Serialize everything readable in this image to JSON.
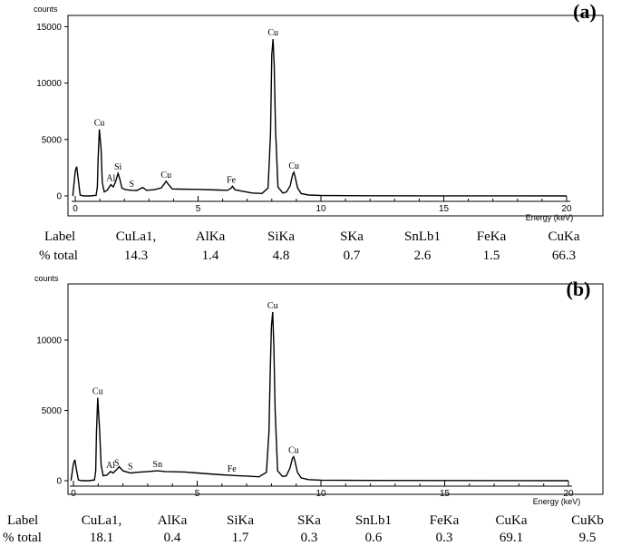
{
  "chart_data": [
    {
      "type": "line",
      "panel_label": "(a)",
      "ylabel": "counts",
      "xlabel": "Energy (keV)",
      "xlim": [
        0,
        20
      ],
      "ylim": [
        0,
        16000
      ],
      "xticks": [
        0,
        5,
        10,
        15,
        20
      ],
      "yticks": [
        0,
        5000,
        10000,
        15000
      ],
      "series": [
        {
          "x": [
            -0.1,
            0.0,
            0.06,
            0.12,
            0.2,
            0.35,
            0.6,
            0.85,
            0.9,
            0.93,
            0.98,
            1.05,
            1.1,
            1.18,
            1.3,
            1.45,
            1.55,
            1.65,
            1.74,
            1.8,
            1.9,
            2.05,
            2.3,
            2.5,
            2.75,
            2.9,
            3.2,
            3.5,
            3.6,
            3.7,
            3.8,
            3.95,
            4.2,
            5.0,
            5.8,
            6.2,
            6.35,
            6.4,
            6.5,
            6.8,
            7.2,
            7.6,
            7.85,
            7.95,
            8.0,
            8.05,
            8.1,
            8.15,
            8.25,
            8.45,
            8.6,
            8.75,
            8.85,
            8.9,
            8.95,
            9.05,
            9.2,
            9.5,
            10.0,
            12.0,
            15.0,
            18.0,
            20.0
          ],
          "y": [
            0,
            2200,
            2600,
            1500,
            80,
            0,
            0,
            60,
            800,
            3200,
            5900,
            4200,
            1200,
            350,
            500,
            1000,
            800,
            1300,
            2000,
            1600,
            700,
            550,
            500,
            480,
            750,
            500,
            550,
            700,
            1000,
            1300,
            1000,
            620,
            600,
            580,
            520,
            500,
            700,
            850,
            550,
            420,
            260,
            220,
            700,
            5500,
            12500,
            13900,
            11500,
            6000,
            800,
            250,
            350,
            900,
            1900,
            2100,
            1700,
            700,
            200,
            80,
            40,
            20,
            10,
            5,
            0
          ]
        }
      ],
      "peak_labels": [
        {
          "text": "Cu",
          "x": 0.98,
          "y": 5900
        },
        {
          "text": "Al",
          "x": 1.45,
          "y": 1000
        },
        {
          "text": "Si",
          "x": 1.74,
          "y": 2000
        },
        {
          "text": "S",
          "x": 2.3,
          "y": 500
        },
        {
          "text": "Cu",
          "x": 3.7,
          "y": 1300
        },
        {
          "text": "Fe",
          "x": 6.35,
          "y": 850
        },
        {
          "text": "Cu",
          "x": 8.05,
          "y": 13900
        },
        {
          "text": "Cu",
          "x": 8.9,
          "y": 2100
        }
      ]
    },
    {
      "type": "line",
      "panel_label": "(b)",
      "ylabel": "counts",
      "xlabel": "Energy (keV)",
      "xlim": [
        0,
        20
      ],
      "ylim": [
        0,
        14000
      ],
      "xticks": [
        0,
        5,
        10,
        15,
        20
      ],
      "yticks": [
        0,
        5000,
        10000
      ],
      "series": [
        {
          "x": [
            -0.1,
            0.0,
            0.06,
            0.12,
            0.2,
            0.35,
            0.6,
            0.85,
            0.9,
            0.93,
            0.98,
            1.05,
            1.12,
            1.2,
            1.35,
            1.5,
            1.6,
            1.75,
            1.85,
            2.0,
            2.3,
            2.6,
            3.0,
            3.4,
            3.7,
            4.0,
            4.5,
            5.0,
            6.0,
            6.4,
            6.5,
            7.0,
            7.5,
            7.8,
            7.9,
            7.95,
            8.0,
            8.05,
            8.1,
            8.15,
            8.25,
            8.45,
            8.6,
            8.75,
            8.85,
            8.9,
            8.95,
            9.05,
            9.2,
            9.5,
            10.0,
            12.0,
            15.0,
            18.0,
            20.0
          ],
          "y": [
            0,
            1200,
            1500,
            800,
            50,
            0,
            0,
            50,
            700,
            3400,
            5900,
            3800,
            1100,
            350,
            400,
            650,
            550,
            800,
            1000,
            700,
            550,
            600,
            650,
            700,
            650,
            640,
            620,
            550,
            420,
            380,
            370,
            330,
            280,
            600,
            3500,
            7500,
            11000,
            12000,
            9500,
            5000,
            700,
            300,
            350,
            900,
            1600,
            1700,
            1400,
            600,
            200,
            80,
            40,
            20,
            10,
            5,
            0
          ]
        }
      ],
      "peak_labels": [
        {
          "text": "Cu",
          "x": 0.98,
          "y": 5900
        },
        {
          "text": "Al",
          "x": 1.5,
          "y": 650
        },
        {
          "text": "S",
          "x": 1.75,
          "y": 800
        },
        {
          "text": "S",
          "x": 2.3,
          "y": 550
        },
        {
          "text": "Sn",
          "x": 3.4,
          "y": 700
        },
        {
          "text": "Fe",
          "x": 6.4,
          "y": 380
        },
        {
          "text": "Cu",
          "x": 8.05,
          "y": 12000
        },
        {
          "text": "Cu",
          "x": 8.9,
          "y": 1700
        }
      ]
    }
  ],
  "tables": [
    {
      "header": "Label",
      "row_label": "% total",
      "columns": [
        {
          "label": "CuLa1,",
          "value": "14.3"
        },
        {
          "label": "AlKa",
          "value": "1.4"
        },
        {
          "label": "SiKa",
          "value": "4.8"
        },
        {
          "label": "SKa",
          "value": "0.7"
        },
        {
          "label": "SnLb1",
          "value": "2.6"
        },
        {
          "label": "FeKa",
          "value": "1.5"
        },
        {
          "label": "CuKa",
          "value": "66.3"
        }
      ]
    },
    {
      "header": "Label",
      "row_label": "% total",
      "columns": [
        {
          "label": "CuLa1,",
          "value": "18.1"
        },
        {
          "label": "AlKa",
          "value": "0.4"
        },
        {
          "label": "SiKa",
          "value": "1.7"
        },
        {
          "label": "SKa",
          "value": "0.3"
        },
        {
          "label": "SnLb1",
          "value": "0.6"
        },
        {
          "label": "FeKa",
          "value": "0.3"
        },
        {
          "label": "CuKa",
          "value": "69.1"
        },
        {
          "label": "CuKb",
          "value": "9.5"
        }
      ]
    }
  ],
  "colors": {
    "line": "#000000",
    "frame": "#000000",
    "background": "#ffffff"
  }
}
